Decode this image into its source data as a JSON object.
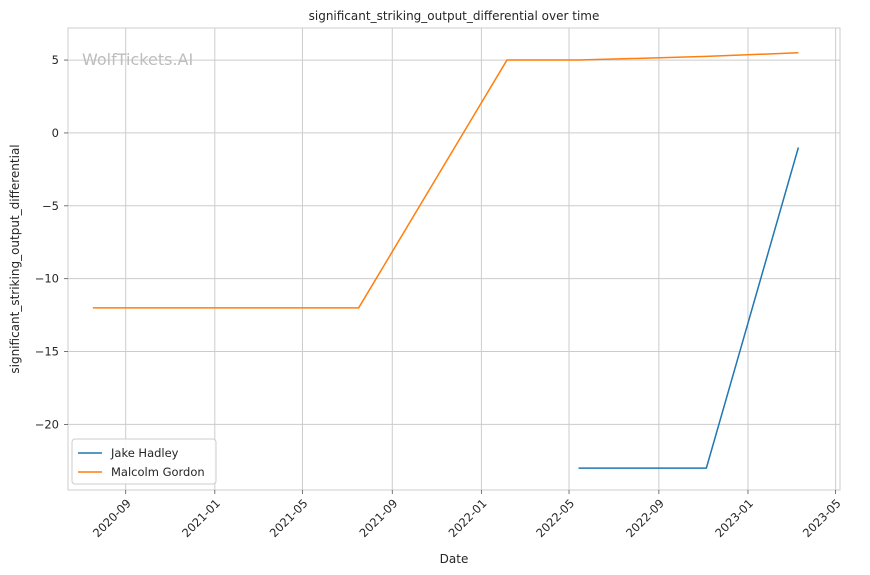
{
  "chart_data": {
    "type": "line",
    "title": "significant_striking_output_differential over time",
    "xlabel": "Date",
    "ylabel": "significant_striking_output_differential",
    "watermark": "WolfTickets.AI",
    "x_type": "date",
    "xlim": [
      "2020-06-14",
      "2023-05-07"
    ],
    "ylim": [
      -24.5,
      7.2
    ],
    "x_ticks": [
      "2020-09",
      "2021-01",
      "2021-05",
      "2021-09",
      "2022-01",
      "2022-05",
      "2022-09",
      "2023-01",
      "2023-05"
    ],
    "y_ticks": [
      5,
      0,
      -5,
      -10,
      -15,
      -20
    ],
    "y_tick_labels": [
      "5",
      "0",
      "−5",
      "−10",
      "−15",
      "−20"
    ],
    "grid": true,
    "legend_position": "lower-left",
    "series": [
      {
        "name": "Jake Hadley",
        "color": "#1f77b4",
        "points": [
          {
            "x": "2022-05-14",
            "y": -23
          },
          {
            "x": "2022-11-05",
            "y": -23
          },
          {
            "x": "2023-03-11",
            "y": -1
          }
        ]
      },
      {
        "name": "Malcolm Gordon",
        "color": "#ff7f0e",
        "points": [
          {
            "x": "2020-07-18",
            "y": -12
          },
          {
            "x": "2021-07-17",
            "y": -12
          },
          {
            "x": "2022-02-05",
            "y": 5
          },
          {
            "x": "2022-05-14",
            "y": 5
          },
          {
            "x": "2022-11-05",
            "y": 5.25
          },
          {
            "x": "2023-03-11",
            "y": 5.5
          }
        ]
      }
    ]
  }
}
